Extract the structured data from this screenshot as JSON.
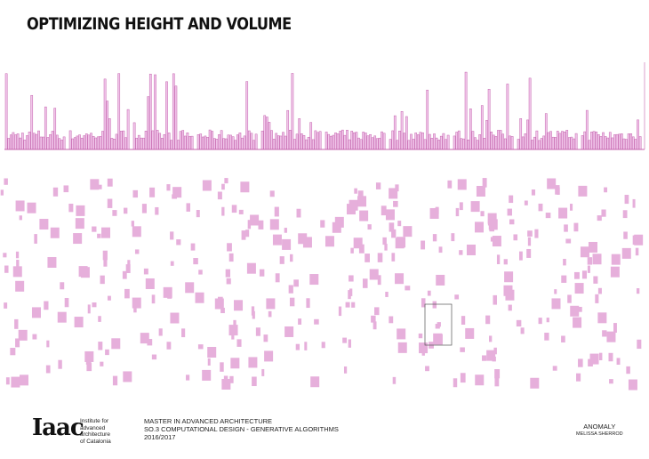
{
  "header": {
    "title": "OPTIMIZING HEIGHT AND VOLUME"
  },
  "footer": {
    "logo": {
      "mark": "Iaac",
      "lines": [
        "Institute for",
        "advanced",
        "architecture",
        "of Catalonia"
      ]
    },
    "course": [
      "MASTER IN ADVANCED ARCHITECTURE",
      "SO.3 COMPUTATIONAL DESIGN - GENERATIVE ALGORITHMS",
      "2016/2017",
      ""
    ],
    "project": "ANOMALY",
    "author": "MELISSA SHERROD"
  }
}
